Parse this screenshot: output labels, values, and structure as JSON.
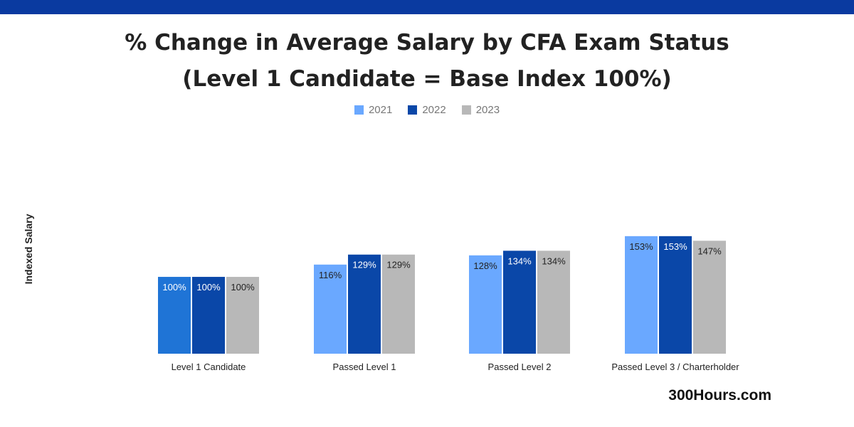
{
  "colors": {
    "topbar": "#0a3aa0",
    "series": [
      "#6aa8ff",
      "#0a47a8",
      "#b8b8b8"
    ],
    "first_bar_2021": "#1f74d6"
  },
  "header": {
    "title_line1": "% Change in Average Salary by CFA Exam Status",
    "title_line2": "(Level 1 Candidate = Base Index 100%)"
  },
  "brand": "300Hours.com",
  "chart_data": {
    "type": "bar",
    "title": "% Change in Average Salary by CFA Exam Status (Level 1 Candidate = Base Index 100%)",
    "ylabel": "Indexed Salary",
    "xlabel": "",
    "categories": [
      "Level 1 Candidate",
      "Passed Level 1",
      "Passed Level 2",
      "Passed Level 3 / Charterholder"
    ],
    "series": [
      {
        "name": "2021",
        "values": [
          100,
          116,
          128,
          153
        ]
      },
      {
        "name": "2022",
        "values": [
          100,
          129,
          134,
          153
        ]
      },
      {
        "name": "2023",
        "values": [
          100,
          129,
          134,
          147
        ]
      }
    ],
    "value_suffix": "%",
    "legend_position": "top",
    "grid": false
  }
}
